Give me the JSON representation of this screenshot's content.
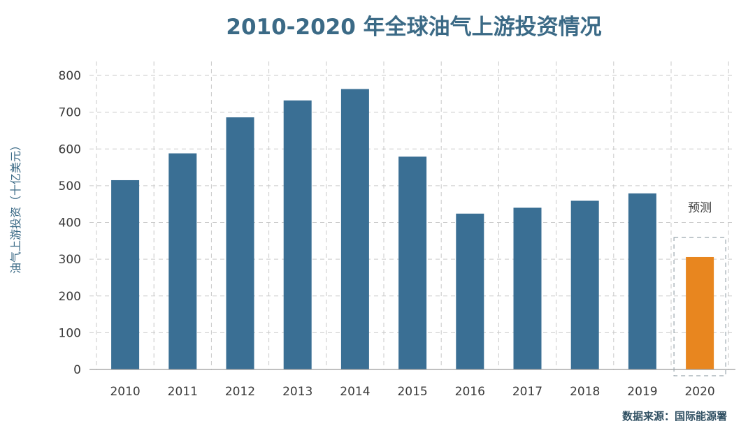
{
  "chart_data": {
    "type": "bar",
    "title": "2010-2020 年全球油气上游投资情况",
    "xlabel": "",
    "ylabel": "油气上游投资（十亿美元）",
    "categories": [
      "2010",
      "2011",
      "2012",
      "2013",
      "2014",
      "2015",
      "2016",
      "2017",
      "2018",
      "2019",
      "2020"
    ],
    "values": [
      515,
      588,
      686,
      732,
      763,
      579,
      424,
      440,
      459,
      479,
      306
    ],
    "forecast_category": "2020",
    "annotation": "预测",
    "source": "数据来源：国际能源署",
    "ylim": [
      0,
      800
    ],
    "yticks": [
      "0",
      "100",
      "200",
      "300",
      "400",
      "500",
      "600",
      "700",
      "800"
    ],
    "grid": true,
    "colors": {
      "bar": "#3a6f94",
      "forecast_bar": "#e8861f",
      "title": "#3b6a86",
      "grid": "#c9c9c9"
    }
  }
}
